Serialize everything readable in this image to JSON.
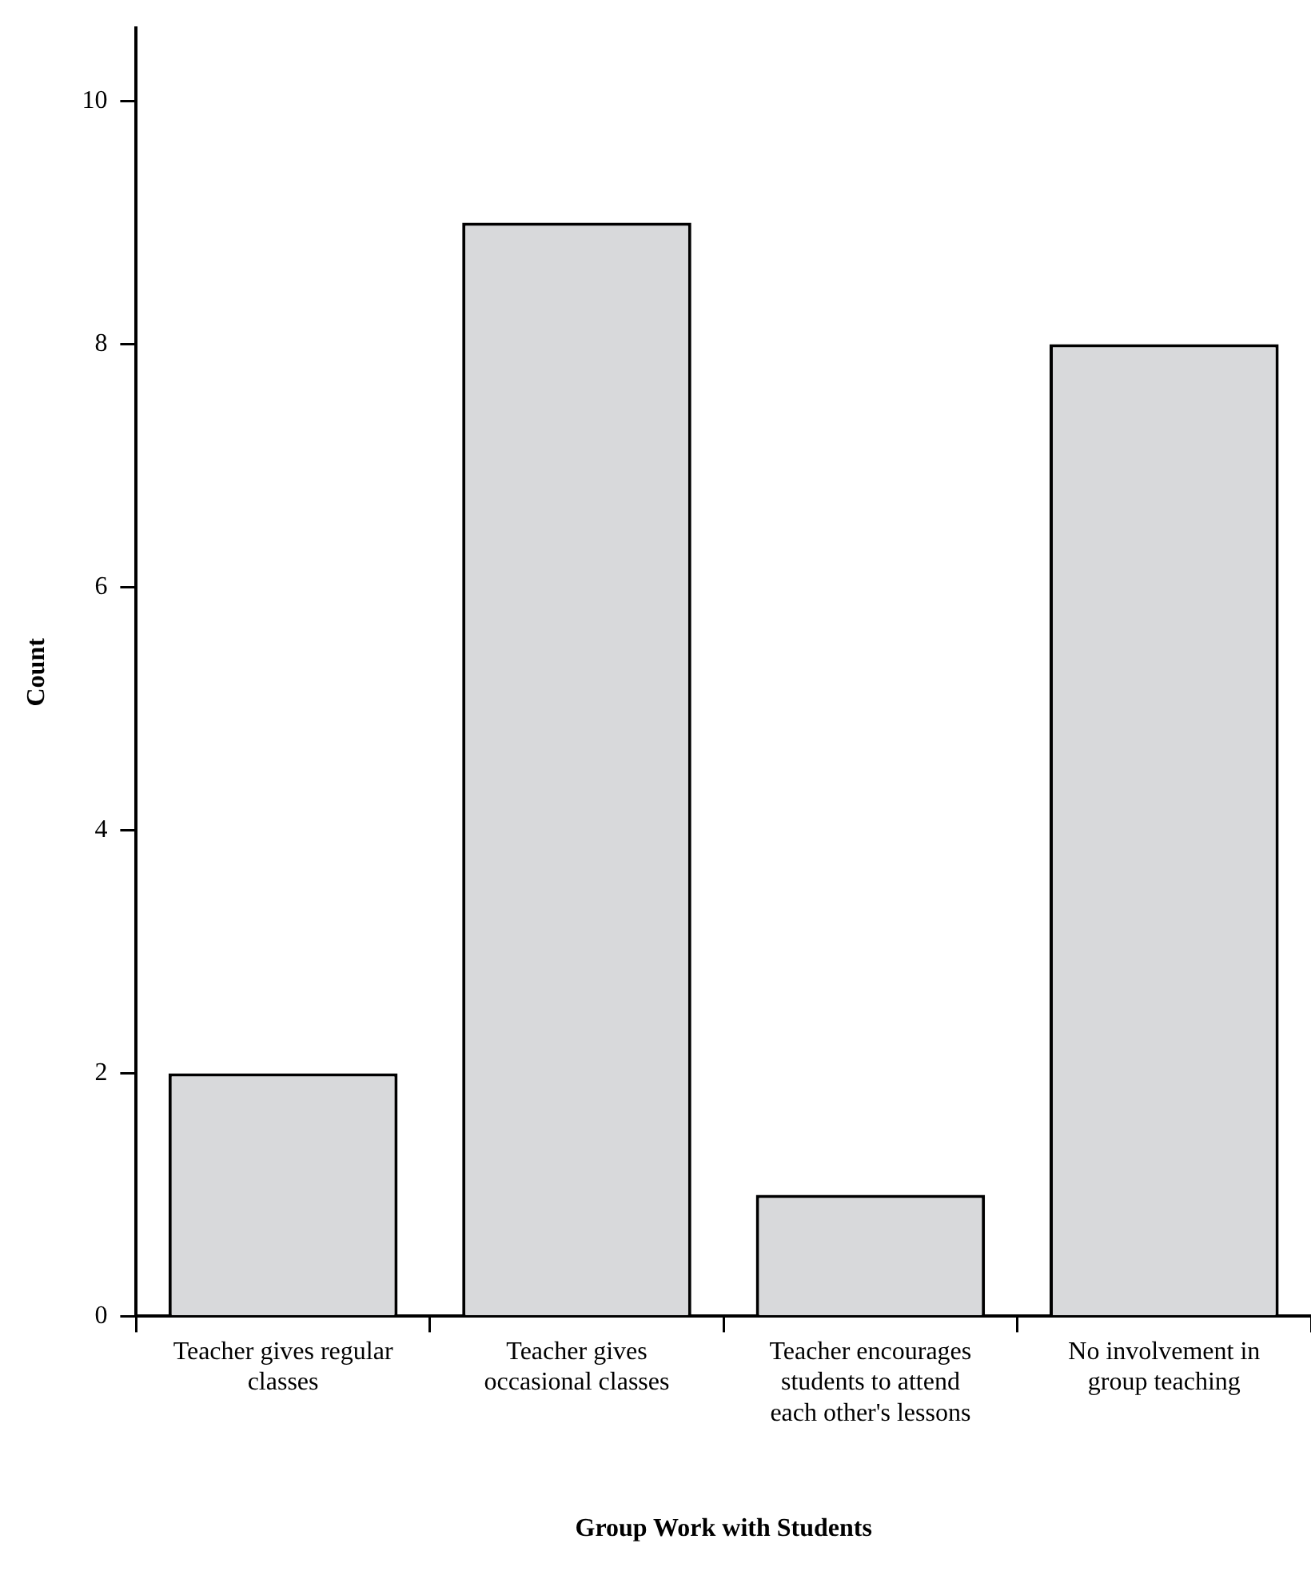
{
  "chart_data": {
    "type": "bar",
    "xlabel": "Group Work with Students",
    "ylabel": "Count",
    "categories": [
      "Teacher gives regular classes",
      "Teacher gives occasional classes",
      "Teacher encourages students to attend each other's lessons",
      "No involvement in group teaching"
    ],
    "values": [
      2,
      9,
      1,
      8
    ],
    "color": "#d8d9db",
    "ylim": [
      0,
      10.6
    ],
    "yticks": [
      0,
      2,
      4,
      6,
      8,
      10
    ],
    "grid": false,
    "legend": false
  }
}
